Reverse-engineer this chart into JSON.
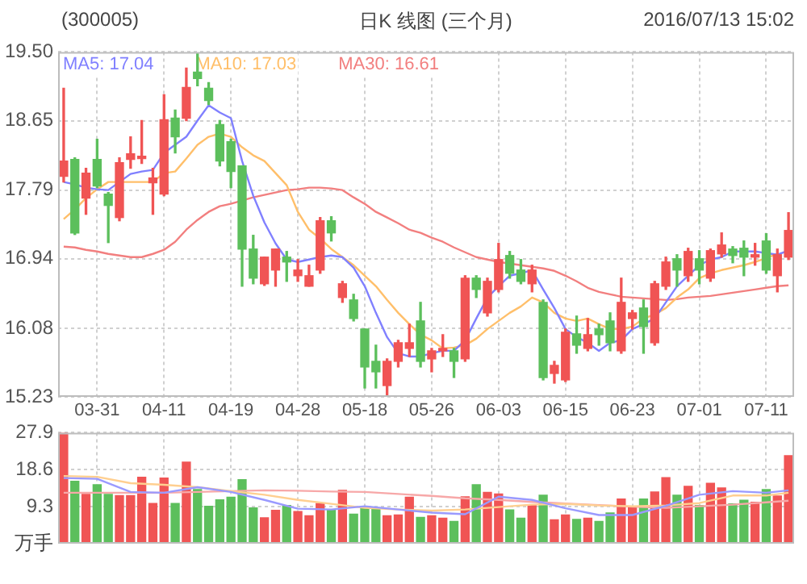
{
  "chart_data": [
    {
      "type": "candlestick",
      "title": "日K 线图 (三个月)",
      "annotations": [
        "(300005)",
        "2016/07/13 15:02"
      ],
      "categories": [
        null,
        null,
        null,
        "03-31",
        null,
        null,
        null,
        null,
        null,
        "04-11",
        null,
        null,
        null,
        null,
        null,
        "04-19",
        null,
        null,
        null,
        null,
        null,
        "04-28",
        null,
        null,
        null,
        null,
        null,
        "05-18",
        null,
        null,
        null,
        null,
        null,
        "05-26",
        null,
        null,
        null,
        null,
        null,
        "06-03",
        null,
        null,
        null,
        null,
        null,
        "06-15",
        null,
        null,
        null,
        null,
        null,
        "06-23",
        null,
        null,
        null,
        null,
        null,
        "07-01",
        null,
        null,
        null,
        null,
        null,
        "07-11",
        null,
        null
      ],
      "ohlc": [
        [
          17.96,
          19.05,
          17.89,
          18.15
        ],
        [
          18.17,
          18.19,
          17.24,
          17.26
        ],
        [
          17.69,
          18.06,
          17.49,
          18.0
        ],
        [
          18.17,
          18.42,
          17.82,
          17.84
        ],
        [
          17.74,
          17.76,
          17.14,
          17.6
        ],
        [
          17.45,
          18.19,
          17.41,
          18.13
        ],
        [
          18.17,
          18.45,
          18.06,
          18.24
        ],
        [
          18.18,
          18.65,
          18.12,
          18.21
        ],
        [
          17.88,
          18.06,
          17.49,
          17.94
        ],
        [
          17.74,
          18.97,
          17.72,
          18.66
        ],
        [
          18.68,
          18.78,
          18.25,
          18.45
        ],
        [
          18.68,
          19.3,
          18.65,
          19.06
        ],
        [
          19.25,
          19.48,
          19.08,
          19.17
        ],
        [
          19.05,
          19.12,
          18.85,
          18.9
        ],
        [
          18.6,
          18.65,
          18.09,
          18.15
        ],
        [
          18.39,
          18.42,
          17.82,
          18.02
        ],
        [
          18.09,
          18.09,
          16.6,
          17.06
        ],
        [
          17.06,
          17.23,
          16.63,
          16.7
        ],
        [
          16.63,
          16.96,
          16.61,
          16.96
        ],
        [
          16.8,
          17.06,
          16.6,
          17.06
        ],
        [
          16.96,
          17.03,
          16.66,
          16.9
        ],
        [
          16.73,
          16.93,
          16.66,
          16.8
        ],
        [
          16.6,
          16.86,
          16.6,
          16.73
        ],
        [
          16.8,
          17.45,
          16.76,
          17.41
        ],
        [
          17.41,
          17.46,
          17.16,
          17.26
        ],
        [
          16.46,
          16.66,
          16.4,
          16.63
        ],
        [
          16.43,
          16.5,
          16.17,
          16.2
        ],
        [
          16.07,
          16.07,
          15.34,
          15.6
        ],
        [
          15.67,
          15.87,
          15.34,
          15.54
        ],
        [
          15.37,
          15.7,
          15.24,
          15.67
        ],
        [
          15.67,
          15.93,
          15.6,
          15.9
        ],
        [
          15.83,
          16.13,
          15.73,
          15.9
        ],
        [
          16.17,
          16.4,
          15.6,
          15.67
        ],
        [
          15.7,
          15.83,
          15.54,
          15.8
        ],
        [
          15.8,
          16.0,
          15.73,
          15.83
        ],
        [
          15.8,
          15.83,
          15.47,
          15.67
        ],
        [
          15.7,
          16.73,
          15.67,
          16.7
        ],
        [
          16.7,
          16.73,
          16.46,
          16.56
        ],
        [
          16.27,
          16.7,
          16.23,
          16.66
        ],
        [
          16.56,
          17.13,
          16.53,
          16.93
        ],
        [
          16.98,
          17.03,
          16.7,
          16.76
        ],
        [
          16.8,
          16.93,
          16.63,
          16.66
        ],
        [
          16.63,
          16.86,
          16.53,
          16.8
        ],
        [
          16.4,
          16.43,
          15.44,
          15.47
        ],
        [
          15.52,
          15.67,
          15.4,
          15.62
        ],
        [
          15.44,
          16.07,
          15.42,
          16.03
        ],
        [
          16.01,
          16.23,
          15.77,
          15.87
        ],
        [
          15.83,
          16.2,
          15.8,
          16.0
        ],
        [
          16.07,
          16.13,
          15.87,
          16.0
        ],
        [
          16.17,
          16.27,
          15.8,
          15.9
        ],
        [
          15.8,
          16.7,
          15.77,
          16.4
        ],
        [
          16.2,
          16.3,
          16.07,
          16.27
        ],
        [
          16.33,
          16.43,
          15.77,
          16.1
        ],
        [
          15.9,
          16.66,
          15.87,
          16.63
        ],
        [
          16.6,
          16.96,
          16.56,
          16.9
        ],
        [
          16.94,
          16.99,
          16.6,
          16.8
        ],
        [
          16.73,
          17.07,
          16.66,
          17.03
        ],
        [
          16.94,
          17.04,
          16.63,
          16.8
        ],
        [
          16.7,
          17.06,
          16.66,
          17.04
        ],
        [
          17.0,
          17.26,
          16.96,
          17.11
        ],
        [
          17.06,
          17.09,
          16.89,
          16.98
        ],
        [
          17.07,
          17.16,
          16.73,
          16.96
        ],
        [
          16.96,
          17.13,
          16.86,
          16.99
        ],
        [
          17.16,
          17.25,
          16.76,
          16.8
        ],
        [
          16.73,
          17.06,
          16.53,
          16.99
        ],
        [
          16.96,
          17.51,
          16.93,
          17.29
        ]
      ],
      "colors": [
        "#f05454",
        "#5cbf5c",
        "#f05454",
        "#5cbf5c",
        "#5cbf5c",
        "#f05454",
        "#f05454",
        "#f05454",
        "#f05454",
        "#f05454",
        "#5cbf5c",
        "#f05454",
        "#5cbf5c",
        "#5cbf5c",
        "#5cbf5c",
        "#5cbf5c",
        "#5cbf5c",
        "#5cbf5c",
        "#f05454",
        "#f05454",
        "#5cbf5c",
        "#f05454",
        "#f05454",
        "#f05454",
        "#5cbf5c",
        "#f05454",
        "#5cbf5c",
        "#5cbf5c",
        "#5cbf5c",
        "#f05454",
        "#f05454",
        "#f05454",
        "#5cbf5c",
        "#f05454",
        "#f05454",
        "#5cbf5c",
        "#f05454",
        "#5cbf5c",
        "#f05454",
        "#f05454",
        "#5cbf5c",
        "#5cbf5c",
        "#f05454",
        "#5cbf5c",
        "#f05454",
        "#f05454",
        "#5cbf5c",
        "#f05454",
        "#5cbf5c",
        "#5cbf5c",
        "#f05454",
        "#f05454",
        "#5cbf5c",
        "#f05454",
        "#f05454",
        "#5cbf5c",
        "#f05454",
        "#5cbf5c",
        "#f05454",
        "#f05454",
        "#5cbf5c",
        "#5cbf5c",
        "#f05454",
        "#5cbf5c",
        "#f05454",
        "#f05454"
      ],
      "series": [
        {
          "type": "line",
          "name": "MA5: 17.04",
          "color": "#8080ff",
          "values": [
            17.89,
            17.86,
            17.82,
            17.8,
            17.79,
            17.89,
            17.99,
            18.02,
            18.04,
            18.25,
            18.35,
            18.45,
            18.65,
            18.84,
            18.75,
            18.68,
            18.15,
            17.72,
            17.39,
            17.13,
            16.93,
            16.9,
            16.93,
            16.96,
            16.98,
            16.96,
            16.83,
            16.6,
            16.27,
            15.97,
            15.77,
            15.73,
            15.73,
            15.77,
            15.8,
            15.8,
            15.93,
            16.2,
            16.46,
            16.6,
            16.73,
            16.76,
            16.8,
            16.56,
            16.33,
            16.07,
            15.97,
            15.9,
            15.8,
            15.9,
            15.93,
            16.07,
            16.13,
            16.2,
            16.4,
            16.6,
            16.73,
            16.86,
            16.93,
            16.96,
            17.03,
            17.03,
            17.03,
            17.01,
            16.99,
            17.04
          ]
        },
        {
          "type": "line",
          "name": "MA10: 17.03",
          "color": "#ffbf6a",
          "values": [
            17.43,
            17.55,
            17.69,
            17.8,
            17.89,
            17.89,
            17.89,
            17.89,
            17.89,
            18.0,
            18.02,
            18.18,
            18.35,
            18.45,
            18.49,
            18.45,
            18.32,
            18.22,
            18.15,
            18.0,
            17.85,
            17.52,
            17.3,
            17.19,
            17.06,
            16.96,
            16.86,
            16.73,
            16.6,
            16.43,
            16.27,
            16.13,
            16.0,
            15.93,
            15.83,
            15.84,
            15.87,
            15.95,
            16.07,
            16.17,
            16.27,
            16.35,
            16.46,
            16.4,
            16.27,
            16.2,
            16.17,
            16.2,
            16.13,
            16.07,
            16.07,
            16.1,
            16.2,
            16.25,
            16.33,
            16.46,
            16.56,
            16.7,
            16.76,
            16.8,
            16.83,
            16.86,
            16.9,
            16.95,
            17.0,
            null
          ]
        },
        {
          "type": "line",
          "name": "MA30: 16.61",
          "color": "#f27f7f",
          "values": [
            17.09,
            17.08,
            17.05,
            17.03,
            17.0,
            16.98,
            16.96,
            16.96,
            17.0,
            17.05,
            17.15,
            17.3,
            17.42,
            17.52,
            17.59,
            17.62,
            17.66,
            17.7,
            17.73,
            17.76,
            17.79,
            17.8,
            17.82,
            17.82,
            17.81,
            17.79,
            17.7,
            17.62,
            17.52,
            17.45,
            17.38,
            17.3,
            17.26,
            17.2,
            17.15,
            17.08,
            17.02,
            16.96,
            16.93,
            16.9,
            16.88,
            16.86,
            16.84,
            16.82,
            16.79,
            16.73,
            16.66,
            16.58,
            16.53,
            16.5,
            16.47,
            16.46,
            16.45,
            16.44,
            16.43,
            16.44,
            16.46,
            16.47,
            16.48,
            16.5,
            16.52,
            16.54,
            16.56,
            16.58,
            16.6,
            16.61
          ]
        }
      ],
      "ylim": [
        15.23,
        19.5
      ],
      "yticks": [
        15.23,
        16.08,
        16.94,
        17.79,
        18.65,
        {
          "value": 19.5,
          "label": "19.50"
        }
      ],
      "grid": true,
      "legend": "top left"
    },
    {
      "type": "bar",
      "ylabel": "万手",
      "tick_labels": "y",
      "categories": [
        null,
        null,
        null,
        null,
        null,
        null,
        null,
        null,
        null,
        null,
        null,
        null,
        null,
        null,
        null,
        null,
        null,
        null,
        null,
        null,
        null,
        null,
        null,
        null,
        null,
        null,
        null,
        null,
        null,
        null,
        null,
        null,
        null,
        null,
        null,
        null,
        null,
        null,
        null,
        null,
        null,
        null,
        null,
        null,
        null,
        null,
        null,
        null,
        null,
        null,
        null,
        null,
        null,
        null,
        null,
        null,
        null,
        null,
        null,
        null,
        null,
        null,
        null,
        null,
        null,
        null
      ],
      "series": [
        {
          "type": "bar",
          "values": [
            27.9,
            15.7,
            12.4,
            14.8,
            12.4,
            12.1,
            12.1,
            16.7,
            10.1,
            16.5,
            10.1,
            20.5,
            13.6,
            9.4,
            11.0,
            11.7,
            16.1,
            9.0,
            6.5,
            8.4,
            9.6,
            8.1,
            7.0,
            10.1,
            8.5,
            13.4,
            7.4,
            9.0,
            8.8,
            7.0,
            7.2,
            11.7,
            6.6,
            7.0,
            6.4,
            5.6,
            11.8,
            14.8,
            12.9,
            12.5,
            8.5,
            6.4,
            9.7,
            12.2,
            6.0,
            7.2,
            6.1,
            6.4,
            5.6,
            7.7,
            11.2,
            9.2,
            11.2,
            13.0,
            16.6,
            12.2,
            14.4,
            9.6,
            15.2,
            14.0,
            10.0,
            10.9,
            10.4,
            13.6,
            12.0,
            22.1
          ],
          "colors": [
            "#f05454",
            "#5cbf5c",
            "#f05454",
            "#5cbf5c",
            "#5cbf5c",
            "#f05454",
            "#f05454",
            "#f05454",
            "#f05454",
            "#f05454",
            "#5cbf5c",
            "#f05454",
            "#5cbf5c",
            "#5cbf5c",
            "#5cbf5c",
            "#5cbf5c",
            "#5cbf5c",
            "#5cbf5c",
            "#f05454",
            "#f05454",
            "#5cbf5c",
            "#f05454",
            "#f05454",
            "#f05454",
            "#5cbf5c",
            "#f05454",
            "#5cbf5c",
            "#5cbf5c",
            "#5cbf5c",
            "#f05454",
            "#f05454",
            "#f05454",
            "#5cbf5c",
            "#f05454",
            "#f05454",
            "#5cbf5c",
            "#f05454",
            "#5cbf5c",
            "#f05454",
            "#f05454",
            "#5cbf5c",
            "#5cbf5c",
            "#f05454",
            "#5cbf5c",
            "#f05454",
            "#f05454",
            "#5cbf5c",
            "#f05454",
            "#5cbf5c",
            "#5cbf5c",
            "#f05454",
            "#f05454",
            "#5cbf5c",
            "#f05454",
            "#f05454",
            "#5cbf5c",
            "#f05454",
            "#5cbf5c",
            "#f05454",
            "#f05454",
            "#5cbf5c",
            "#5cbf5c",
            "#f05454",
            "#5cbf5c",
            "#f05454",
            "#f05454"
          ]
        },
        {
          "type": "line",
          "color": "#9a9aff",
          "values": [
            16.5,
            null,
            null,
            16.3,
            null,
            null,
            13.0,
            null,
            null,
            12.8,
            null,
            null,
            14.2,
            null,
            null,
            13.0,
            null,
            null,
            11.0,
            null,
            null,
            8.8,
            null,
            null,
            8.6,
            null,
            null,
            9.4,
            null,
            null,
            8.6,
            null,
            null,
            7.8,
            null,
            null,
            7.4,
            null,
            null,
            11.8,
            null,
            null,
            11.0,
            null,
            null,
            8.9,
            null,
            null,
            7.2,
            null,
            null,
            7.2,
            null,
            null,
            9.5,
            null,
            null,
            12.3,
            null,
            null,
            13.2,
            null,
            null,
            12.8,
            null,
            13.4
          ]
        },
        {
          "type": "line",
          "color": "#ffcf90",
          "values": [
            17.0,
            null,
            null,
            16.8,
            null,
            null,
            15.2,
            null,
            null,
            14.8,
            null,
            null,
            14.2,
            null,
            null,
            13.2,
            null,
            null,
            12.3,
            null,
            null,
            11.0,
            null,
            null,
            10.0,
            null,
            null,
            9.0,
            null,
            null,
            8.6,
            null,
            null,
            8.3,
            null,
            null,
            8.6,
            null,
            null,
            9.2,
            null,
            null,
            9.8,
            null,
            null,
            10.0,
            null,
            null,
            9.6,
            null,
            null,
            9.4,
            null,
            null,
            9.6,
            null,
            null,
            10.2,
            null,
            null,
            12.1,
            null,
            null,
            12.1,
            null,
            12.8
          ]
        },
        {
          "type": "line",
          "color": "#f7a8a8",
          "values": [
            12.8,
            null,
            null,
            12.8,
            null,
            null,
            12.8,
            null,
            null,
            12.8,
            null,
            null,
            13.0,
            null,
            null,
            13.2,
            null,
            null,
            13.4,
            null,
            null,
            13.3,
            null,
            null,
            13.1,
            null,
            null,
            13.0,
            null,
            null,
            12.5,
            null,
            null,
            12.0,
            null,
            null,
            11.4,
            null,
            null,
            11.0,
            null,
            null,
            10.5,
            null,
            null,
            10.1,
            null,
            null,
            9.7,
            null,
            null,
            9.3,
            null,
            null,
            9.0,
            null,
            null,
            9.4,
            null,
            null,
            9.8,
            null,
            null,
            10.4,
            null,
            10.8
          ]
        }
      ],
      "ylim": [
        0,
        27.9
      ],
      "yticks": [
        9.3,
        18.6,
        27.9
      ],
      "grid": true
    }
  ]
}
